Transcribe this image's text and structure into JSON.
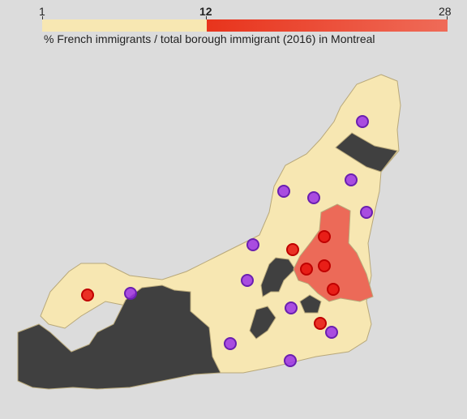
{
  "legend": {
    "min_label": "1",
    "mid_label": "12",
    "max_label": "28",
    "caption": "% French immigrants / total borough immigrant (2016) in Montreal",
    "low_color": "#f7e7b2",
    "high_color_start": "#e8341c",
    "high_color_end": "#ef6b58",
    "scale": [
      1,
      12,
      28
    ]
  },
  "map": {
    "colors": {
      "background": "#dcdcdc",
      "low": "#f7e7b2",
      "high": "#ec6a58",
      "nodata": "#404040",
      "marker_high": "#e8100c",
      "marker_low": "#9b30e8"
    },
    "marker_categories": [
      "high",
      "low"
    ]
  }
}
